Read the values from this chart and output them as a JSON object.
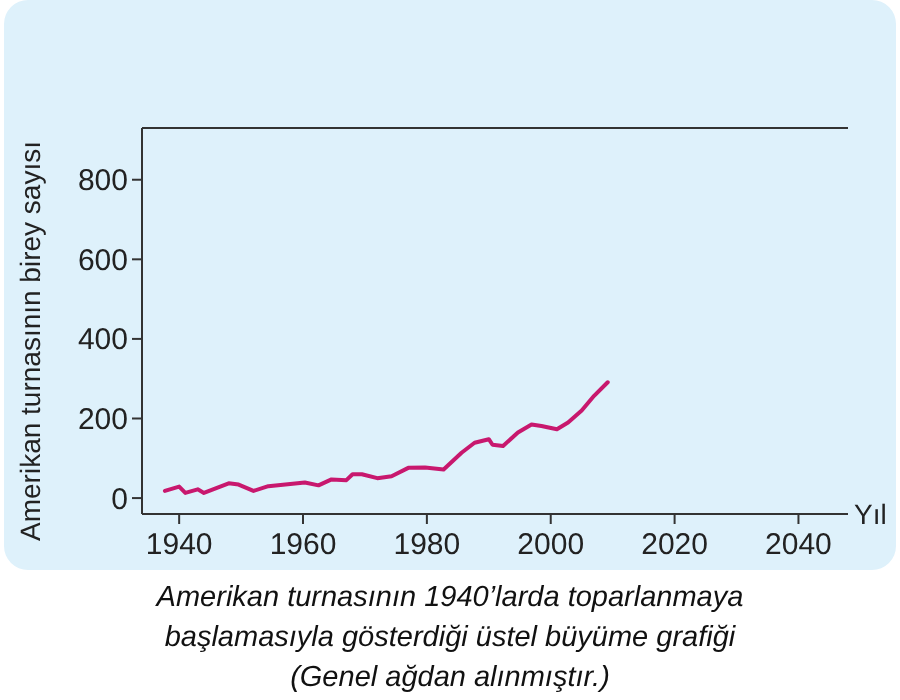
{
  "chart_data": {
    "type": "line",
    "ylabel": "Amerikan turnasının birey sayısı",
    "xlabel": "Yıl",
    "annotations": [
      "Amerikan turnasının 1940’larda toparlanmaya başlamasıyla gösterdiği üstel büyüme grafiği (Genel ağdan alınmıştır.)"
    ],
    "x": [
      1937.7,
      1940,
      1941,
      1943,
      1944,
      1948,
      1949.6,
      1952,
      1954.4,
      1960.3,
      1962.5,
      1964.6,
      1967,
      1968,
      1969.5,
      1972,
      1974.3,
      1977,
      1979.7,
      1982.7,
      1985.6,
      1987.7,
      1990,
      1990.6,
      1992.3,
      1994.7,
      1996.9,
      1998.5,
      2001,
      2002.8,
      2005,
      2007,
      2009.2
    ],
    "series": [
      {
        "color": "#c8186e",
        "values": [
          18,
          29,
          13,
          22,
          13,
          37,
          34,
          18,
          30,
          39,
          32,
          47,
          45,
          60,
          60,
          50,
          55,
          76,
          77,
          72,
          114,
          139,
          148,
          134,
          131,
          165,
          185,
          181,
          173,
          190,
          220,
          257,
          291
        ]
      }
    ],
    "xlim": [
      1934,
      2048
    ],
    "ylim": [
      -40,
      930
    ],
    "xticks": [
      1940,
      1960,
      1980,
      2000,
      2020,
      2040
    ],
    "yticks": [
      0,
      200,
      400,
      600,
      800
    ],
    "grid": false,
    "marker": "none",
    "line_style": "solid"
  }
}
